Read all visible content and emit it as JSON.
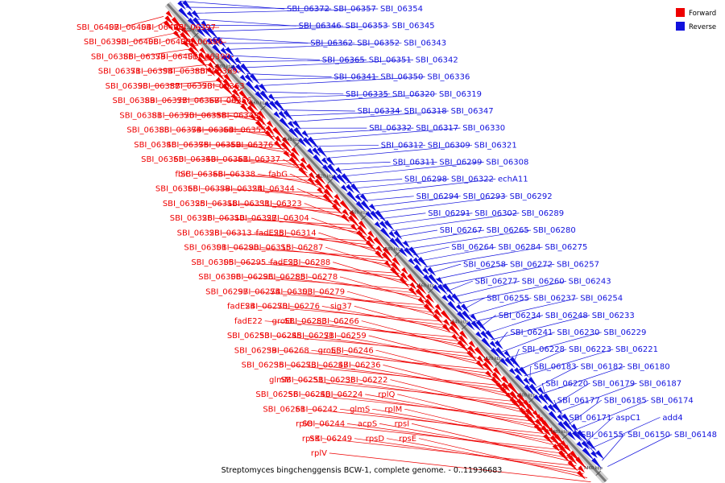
{
  "caption": "Streptomyces bingchenggensis BCW-1, complete genome. - 0..11936683",
  "legend": {
    "items": [
      {
        "label": "Forward",
        "color": "#ee0000"
      },
      {
        "label": "Reverse",
        "color": "#1111dd"
      }
    ]
  },
  "colors": {
    "forward": "#ee0000",
    "reverse": "#1111dd",
    "backbone": "#777777"
  },
  "ticks": [
    "7700 kbp",
    "7680 kbp",
    "7660 kbp",
    "7640 kbp",
    "7620 kbp",
    "7600 kbp",
    "7580 kbp",
    "7560 kbp",
    "7540 kbp",
    "7520 kbp",
    "7500 kbp",
    "7480 kbp",
    "7460 kbp"
  ],
  "forward_genes": [
    "SBI_06407",
    "SBI_06404",
    "SBI_06406",
    "SBI_06397",
    "SBI_06393",
    "SBI_06408",
    "SBI_06400",
    "SBI_06396",
    "SBI_06386",
    "SBI_06379",
    "SBI_06401",
    "SBI_06390",
    "SBI_06371",
    "SBI_06394",
    "SBI_06380",
    "SBI_06369",
    "SBI_06398",
    "SBI_06387",
    "SBI_06373",
    "SBI_06363",
    "SBI_06389",
    "SBI_06377",
    "SBI_06367",
    "SBI_06356",
    "SBI_06381",
    "SBI_06370",
    "SBI_06358",
    "SBI_06349",
    "SBI_06388",
    "SBI_06374",
    "SBI_06364",
    "SBI_06355",
    "SBI_06348",
    "SBI_06375",
    "SBI_06359",
    "SBI_06376",
    "SBI_06360",
    "SBI_06340",
    "SBI_06361",
    "SBI_06337",
    "fbiC",
    "SBI_06366",
    "SBI_06338",
    "fabG",
    "SBI_06368",
    "SBI_06339",
    "SBI_06324",
    "SBI_06344",
    "SBI_06325",
    "SBI_06316",
    "SBI_06331",
    "SBI_06323",
    "SBI_06326",
    "SBI_06310",
    "SBI_06327",
    "SBI_06304",
    "SBI_06328",
    "SBI_06313",
    "fadE25",
    "SBI_06314",
    "SBI_06301",
    "SBI_06290",
    "SBI_06315",
    "SBI_06287",
    "SBI_06305",
    "SBI_06295",
    "fadE23",
    "SBI_06288",
    "SBI_06306",
    "SBI_06296",
    "SBI_06285",
    "SBI_06278",
    "SBI_06297",
    "SBI_06274",
    "SBI_06303",
    "SBI_06279",
    "fadE24",
    "SBI_06270",
    "SBI_06276",
    "sig37",
    "fadE22",
    "groEL",
    "SBI_06283",
    "SBI_06266",
    "SBI_06253",
    "SBI_06245",
    "SBI_06271",
    "SBI_06259",
    "SBI_06239",
    "SBI_06268",
    "groES",
    "SBI_06246",
    "SBI_06235",
    "SBI_06273",
    "SBI_06247",
    "SBI_06236",
    "glmM",
    "SBI_06251",
    "SBI_06238",
    "SBI_06222",
    "SBI_06256",
    "SBI_06240",
    "SBI_06224",
    "rplQ",
    "SBI_06261",
    "SBI_06242",
    "glmS",
    "rplM",
    "rplO",
    "SBI_06244",
    "acpS",
    "rpsI",
    "rpsK",
    "SBI_06249",
    "rpsD",
    "rpsE",
    "rplV"
  ],
  "reverse_genes": [
    "SBI_06372",
    "SBI_06357",
    "SBI_06354",
    "SBI_06346",
    "SBI_06353",
    "SBI_06345",
    "SBI_06362",
    "SBI_06352",
    "SBI_06343",
    "SBI_06365",
    "SBI_06351",
    "SBI_06342",
    "SBI_06341",
    "SBI_06350",
    "SBI_06336",
    "SBI_06335",
    "SBI_06320",
    "SBI_06319",
    "SBI_06334",
    "SBI_06318",
    "SBI_06347",
    "SBI_06332",
    "SBI_06317",
    "SBI_06330",
    "SBI_06312",
    "SBI_06309",
    "SBI_06321",
    "SBI_06311",
    "SBI_06299",
    "SBI_06308",
    "SBI_06298",
    "SBI_06322",
    "echA11",
    "SBI_06294",
    "SBI_06293",
    "SBI_06292",
    "SBI_06291",
    "SBI_06302",
    "SBI_06289",
    "SBI_06267",
    "SBI_06265",
    "SBI_06280",
    "SBI_06264",
    "SBI_06284",
    "SBI_06275",
    "SBI_06258",
    "SBI_06272",
    "SBI_06257",
    "SBI_06277",
    "SBI_06260",
    "SBI_06243",
    "SBI_06255",
    "SBI_06237",
    "SBI_06254",
    "SBI_06234",
    "SBI_06248",
    "SBI_06233",
    "SBI_06241",
    "SBI_06230",
    "SBI_06229",
    "SBI_06228",
    "SBI_06223",
    "SBI_06221",
    "SBI_06183",
    "SBI_06182",
    "SBI_06180",
    "SBI_06220",
    "SBI_06179",
    "SBI_06187",
    "SBI_06177",
    "SBI_06185",
    "SBI_06174",
    "SBI_06171",
    "aspC1",
    "add4",
    "SBI_06155",
    "SBI_06150",
    "SBI_06148"
  ]
}
